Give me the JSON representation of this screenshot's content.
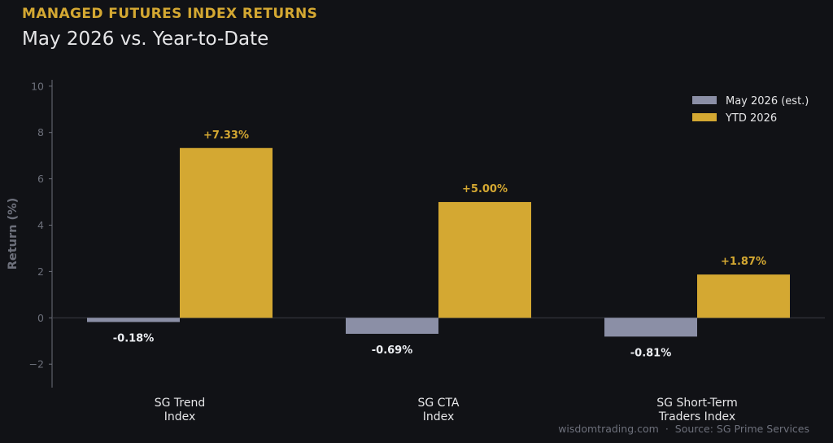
{
  "header": {
    "kicker": "MANAGED FUTURES INDEX RETURNS",
    "title": "May 2026 vs. Year-to-Date"
  },
  "footer": {
    "site": "wisdomtrading.com",
    "separator": "·",
    "source": "Source: SG Prime Services"
  },
  "colors": {
    "background": "#111216",
    "may": "#8b8fa6",
    "ytd": "#d4a832",
    "axis": "#6d707b",
    "text": "#e6e6e8"
  },
  "chart_data": {
    "type": "bar",
    "title": "May 2026 vs. Year-to-Date",
    "xlabel": "",
    "ylabel": "Return (%)",
    "ylim": [
      -3,
      10
    ],
    "yticks": [
      -2,
      0,
      2,
      4,
      6,
      8,
      10
    ],
    "ytick_labels": [
      "−2",
      "0",
      "2",
      "4",
      "6",
      "8",
      "10"
    ],
    "grid": false,
    "legend_position": "top-right",
    "categories": [
      [
        "SG Trend",
        "Index"
      ],
      [
        "SG CTA",
        "Index"
      ],
      [
        "SG Short-Term",
        "Traders Index"
      ]
    ],
    "series": [
      {
        "name": "May 2026 (est.)",
        "color": "#8b8fa6",
        "values": [
          -0.18,
          -0.69,
          -0.81
        ],
        "labels": [
          "-0.18%",
          "-0.69%",
          "-0.81%"
        ]
      },
      {
        "name": "YTD 2026",
        "color": "#d4a832",
        "values": [
          7.33,
          5.0,
          1.87
        ],
        "labels": [
          "+7.33%",
          "+5.00%",
          "+1.87%"
        ]
      }
    ]
  }
}
